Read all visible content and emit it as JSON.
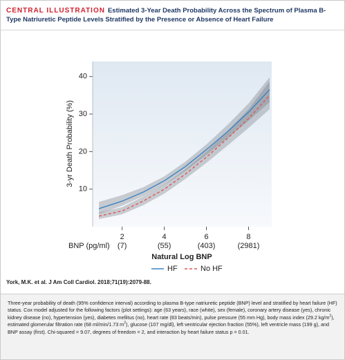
{
  "header": {
    "label": "CENTRAL ILLUSTRATION",
    "title": "Estimated 3-Year Death Probability Across the Spectrum of Plasma B-Type Natriuretic Peptide Levels Stratified by the Presence or Absence of Heart Failure"
  },
  "chart_data": {
    "type": "line",
    "y_label": "3-yr Death Probability (%)",
    "x_label": "Natural Log BNP",
    "bnp_label": "BNP (pg/ml)",
    "bnp_labels": [
      "(7)",
      "(55)",
      "(403)",
      "(2981)"
    ],
    "x": [
      0.9,
      2,
      3,
      4,
      5,
      6,
      7,
      8,
      9
    ],
    "xlim": [
      0.6,
      9.1
    ],
    "xticks": [
      2,
      4,
      6,
      8
    ],
    "ylim": [
      0,
      44
    ],
    "yticks": [
      10,
      20,
      30,
      40
    ],
    "grid": false,
    "legend": "bottom",
    "series": [
      {
        "name": "HF",
        "color": "#3b82c4",
        "dashed": false,
        "values": [
          4.8,
          6.8,
          9.2,
          12.2,
          16,
          20.5,
          25.3,
          30.5,
          36.5
        ],
        "ci_lower": [
          3.4,
          5.6,
          8.1,
          11.1,
          14.8,
          19.1,
          23.6,
          28.2,
          33.2
        ],
        "ci_upper": [
          6.6,
          8.4,
          10.5,
          13.4,
          17.3,
          21.9,
          27.1,
          32.8,
          39.8
        ]
      },
      {
        "name": "No HF",
        "color": "#e05555",
        "dashed": true,
        "values": [
          2.8,
          4.2,
          6.8,
          10,
          14,
          18.5,
          23.5,
          28.8,
          35
        ],
        "ci_lower": [
          2,
          3.3,
          5.7,
          8.8,
          12.7,
          17,
          21.6,
          26.3,
          31.3
        ],
        "ci_upper": [
          3.8,
          5.2,
          8,
          11.2,
          15.3,
          20,
          25.4,
          31.3,
          38.7
        ]
      }
    ]
  },
  "citation": "York, M.K. et al. J Am Coll Cardiol. 2018;71(19):2079-88.",
  "caption": [
    "Three-year probability of death (95% confidence interval) according to plasma B-type natriuretic peptide (BNP) level and stratified by heart failure (HF) status. Cox model adjusted for the following factors (plot settings): age (63 years), race (white), sex (female), coronary artery disease (yes), chronic kidney disease (no), hypertension (yes), diabetes mellitus (no), heart rate (83 beats/min), pulse pressure (55 mm Hg), body mass index (29.2 kg/m",
    "2",
    "), estimated glomerular filtration rate (68 ml/min/1.73 m",
    "2",
    "), glucose (107 mg/dl), left ventricular ejection fraction (55%), left ventricle mass (199 g), and BNP assay (first). Chi-squared = 9.07, degrees of freedom = 2, and interaction by heart failure status p = 0.01."
  ]
}
